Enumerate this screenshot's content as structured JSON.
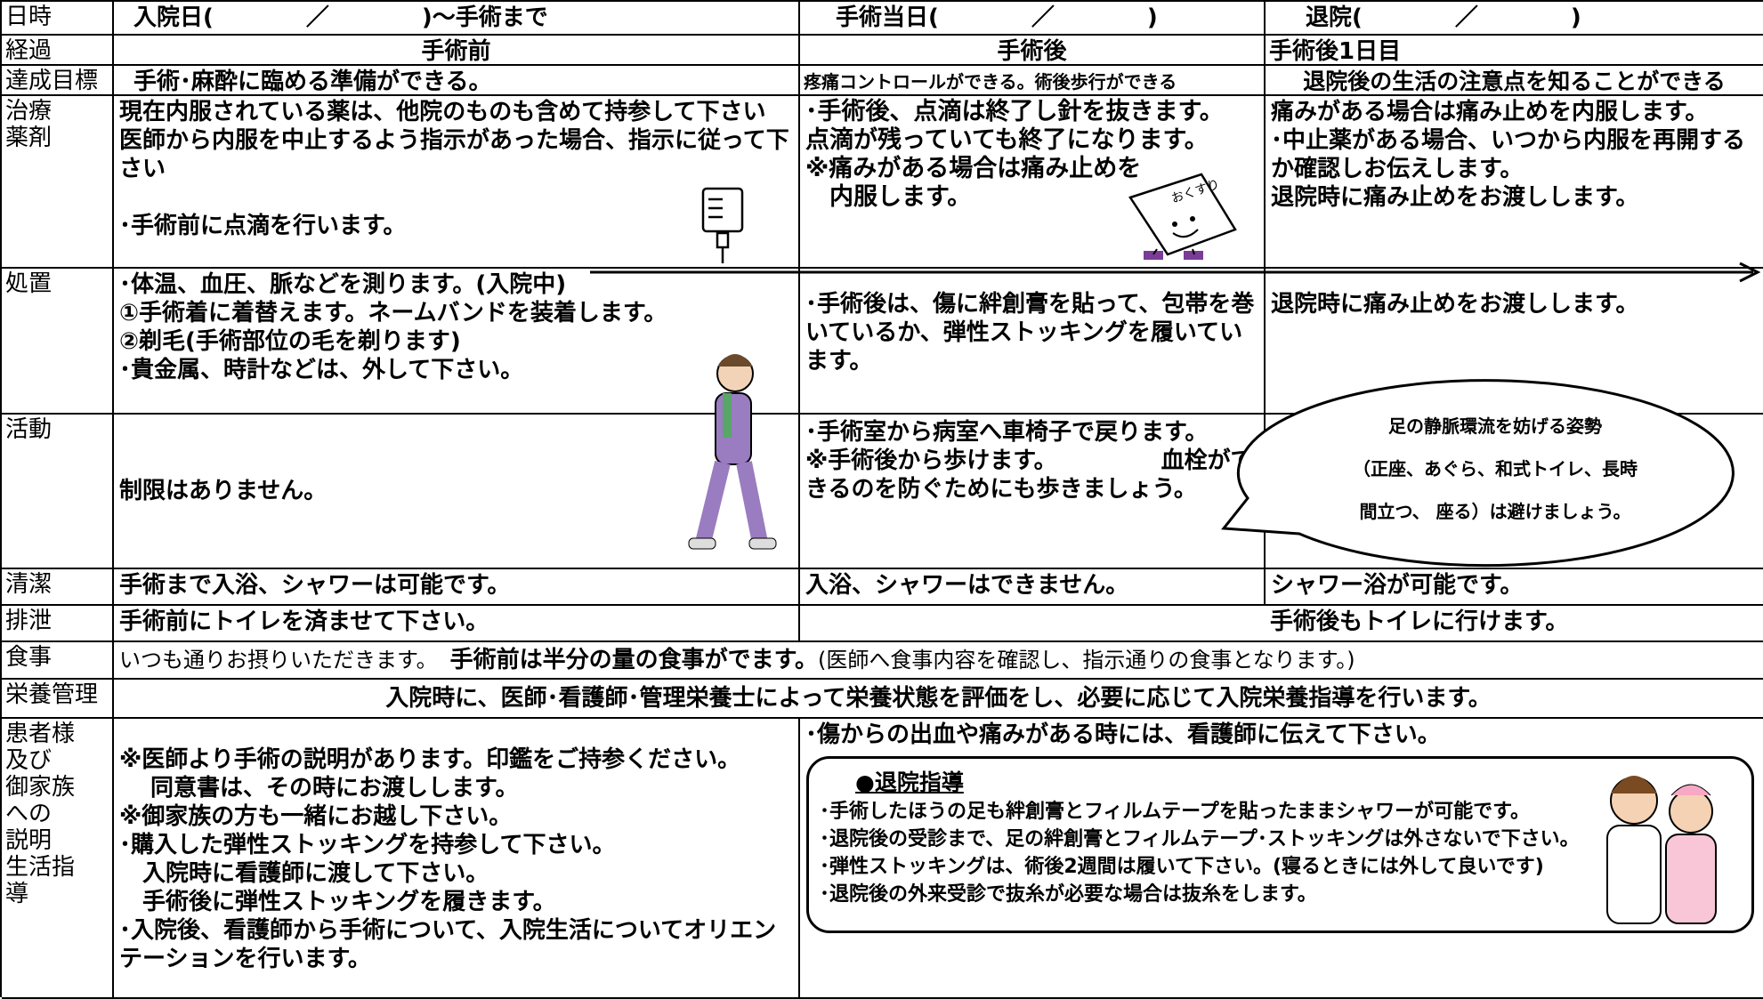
{
  "rows": [
    {
      "label": "日時",
      "cells": [
        "入院日(　　　　／　　　　)～手術まで",
        "手術当日(　　　　／　　　　)",
        "退院(　　　　／　　　　)"
      ]
    },
    {
      "label": "経過",
      "cells": [
        "手術前",
        "手術後",
        "手術後1日目"
      ]
    },
    {
      "label": "達成目標",
      "cells": [
        "手術･麻酔に臨める準備ができる。",
        "疼痛コントロールができる。術後歩行ができる",
        "退院後の生活の注意点を知ることができる"
      ]
    },
    {
      "label": [
        "治療",
        "薬剤"
      ],
      "cells": [
        [
          "現在内服されている薬は、他院のものも含めて持参して下さい",
          "医師から内服を中止するよう指示があった場合、指示に従って下さい",
          "･手術前に点滴を行います。"
        ],
        [
          "･手術後、点滴は終了し針を抜きます。",
          "点滴が残っていても終了になります。",
          "※痛みがある場合は痛み止めを",
          "　内服します。"
        ],
        [
          "痛みがある場合は痛み止めを内服します。",
          "･中止薬がある場合、いつから内服を再開するか確認しお伝えします。",
          "退院時に痛み止めをお渡しします。"
        ]
      ]
    },
    {
      "label": "処置",
      "cells": [
        [
          "･体温、血圧、脈などを測ります。(入院中)",
          "①手術着に着替えます。ネームバンドを装着します。",
          "②剃毛(手術部位の毛を剃ります)",
          "･貴金属、時計などは、外して下さい。"
        ],
        "･手術後は、傷に絆創膏を貼って、包帯を巻いているか、弾性ストッキングを履いています。",
        "退院時に痛み止めをお渡しします。"
      ]
    },
    {
      "label": "活動",
      "cells": [
        "制限はありません。",
        [
          "･手術室から病室へ車椅子で戻ります。",
          "※手術後から歩けます。　　　　　血栓ができるのを防ぐためにも歩きましょう。"
        ]
      ]
    },
    {
      "label": "清潔",
      "cells": [
        "手術まで入浴、シャワーは可能です。",
        "入浴、シャワーはできません。",
        "シャワー浴が可能です。"
      ]
    },
    {
      "label": "排泄",
      "cells": [
        "手術前にトイレを済ませて下さい。",
        "手術後もトイレに行けます。"
      ]
    },
    {
      "label": "食事",
      "cells": [
        [
          "いつも通りお摂りいただきます。",
          "手術前は半分の量の食事がでます。",
          "(医師へ食事内容を確認し、指示通りの食事となります。)"
        ]
      ]
    },
    {
      "label": "栄養管理",
      "cells": [
        "入院時に、医師･看護師･管理栄養士によって栄養状態を評価をし、必要に応じて入院栄養指導を行います。"
      ]
    },
    {
      "label": [
        "患者様",
        "及び",
        "御家族",
        "への",
        "説明",
        "生活指",
        "導"
      ],
      "cells": [
        [
          "※医師より手術の説明があります。印鑑をご持参ください。",
          "　 同意書は、その時にお渡しします。",
          "※御家族の方も一緒にお越し下さい。",
          "･購入した弾性ストッキングを持参して下さい。",
          "　入院時に看護師に渡して下さい。",
          "　手術後に弾性ストッキングを履きます。",
          "･入院後、看護師から手術について、入院生活についてオリエンテーションを行います。"
        ],
        "･傷からの出血や痛みがある時には、看護師に伝えて下さい。"
      ]
    }
  ],
  "callout": [
    "足の静脈環流を妨げる姿勢",
    "（正座、あぐら、和式トイレ、長時",
    "間立つ、 座る）は避けましょう。"
  ],
  "discharge_guidance": {
    "title": "●退院指導",
    "items": [
      "･手術したほうの足も絆創膏とフィルムテープを貼ったままシャワーが可能です。",
      "･退院後の受診まで、足の絆創膏とフィルムテープ･ストッキングは外さないで下さい。",
      "･弾性ストッキングは、術後2週間は履いて下さい。(寝るときには外して良いです)",
      "･退院後の外来受診で抜糸が必要な場合は抜糸をします。"
    ]
  },
  "medicine_label": "おくすり"
}
